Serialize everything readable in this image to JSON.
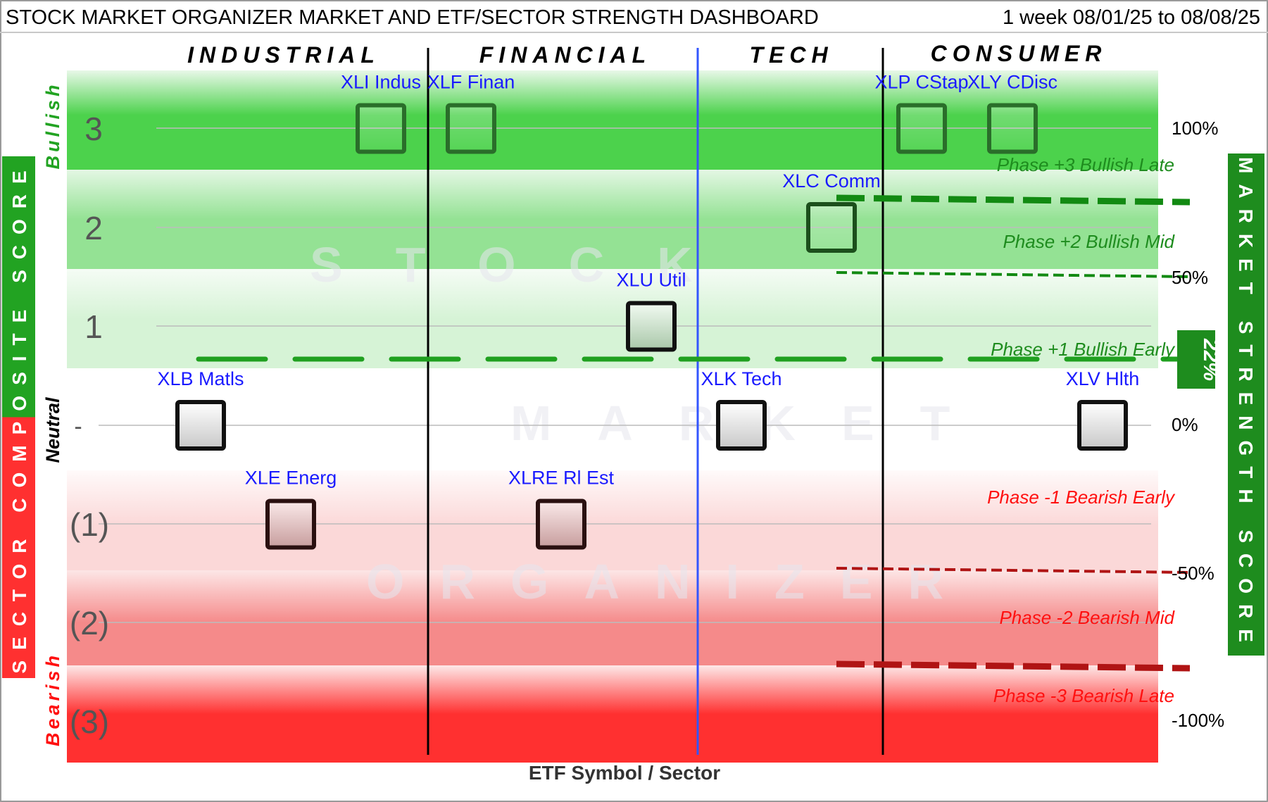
{
  "header": {
    "title": "STOCK MARKET ORGANIZER MARKET AND ETF/SECTOR STRENGTH DASHBOARD",
    "period": "1 week 08/01/25 to 08/08/25"
  },
  "chart_data": {
    "type": "scatter",
    "title": "STOCK MARKET ORGANIZER MARKET AND ETF/SECTOR STRENGTH DASHBOARD",
    "xlabel": "ETF Symbol / Sector",
    "ylabel_left": "SECTOR COMPOSITE SCORE",
    "ylabel_right": "MARKET STRENGTH SCORE",
    "sectors": [
      "INDUSTRIAL",
      "FINANCIAL",
      "TECH",
      "CONSUMER"
    ],
    "score_ticks": [
      "3",
      "2",
      "1",
      "-",
      "(1)",
      "(2)",
      "(3)"
    ],
    "percent_ticks": [
      "100%",
      "50%",
      "0%",
      "-50%",
      "-100%"
    ],
    "mood_labels": {
      "bullish": "Bullish",
      "neutral": "Neutral",
      "bearish": "Bearish"
    },
    "phases": [
      {
        "label": "Phase +3 Bullish Late",
        "color": "#1e8c1e"
      },
      {
        "label": "Phase +2 Bullish Mid",
        "color": "#1e8c1e"
      },
      {
        "label": "Phase +1 Bullish Early",
        "color": "#1e8c1e"
      },
      {
        "label": "Phase -1 Bearish Early",
        "color": "#ff1010"
      },
      {
        "label": "Phase -2 Bearish Mid",
        "color": "#ff1010"
      },
      {
        "label": "Phase -3 Bearish Late",
        "color": "#ff1010"
      }
    ],
    "market_strength": {
      "label": "22%",
      "value": 22
    },
    "etfs": [
      {
        "label": "XLB Matls",
        "score": 0
      },
      {
        "label": "XLE Energ",
        "score": -1
      },
      {
        "label": "XLI Indus",
        "score": 3
      },
      {
        "label": "XLF Finan",
        "score": 3
      },
      {
        "label": "XLRE Rl Est",
        "score": -1
      },
      {
        "label": "XLU Util",
        "score": 1
      },
      {
        "label": "XLK Tech",
        "score": 0
      },
      {
        "label": "XLC Comm",
        "score": 2
      },
      {
        "label": "XLP CStap",
        "score": 3
      },
      {
        "label": "XLY CDisc",
        "score": 3
      },
      {
        "label": "XLV Hlth",
        "score": 0
      }
    ],
    "watermark": [
      "STOCK",
      "MARKET",
      "ORGANIZER"
    ],
    "colors": {
      "bull_strong": "#4cd24c",
      "bull_mid": "#94e294",
      "bull_light": "#d6f3d6",
      "bear_light": "#fbd8d8",
      "bear_mid": "#f58a8a",
      "bear_strong": "#ff3030",
      "etf_label": "#1a1aff",
      "tech_divider": "#3355ff",
      "side_left": "#22a322",
      "side_right": "#1e8c1e"
    }
  }
}
